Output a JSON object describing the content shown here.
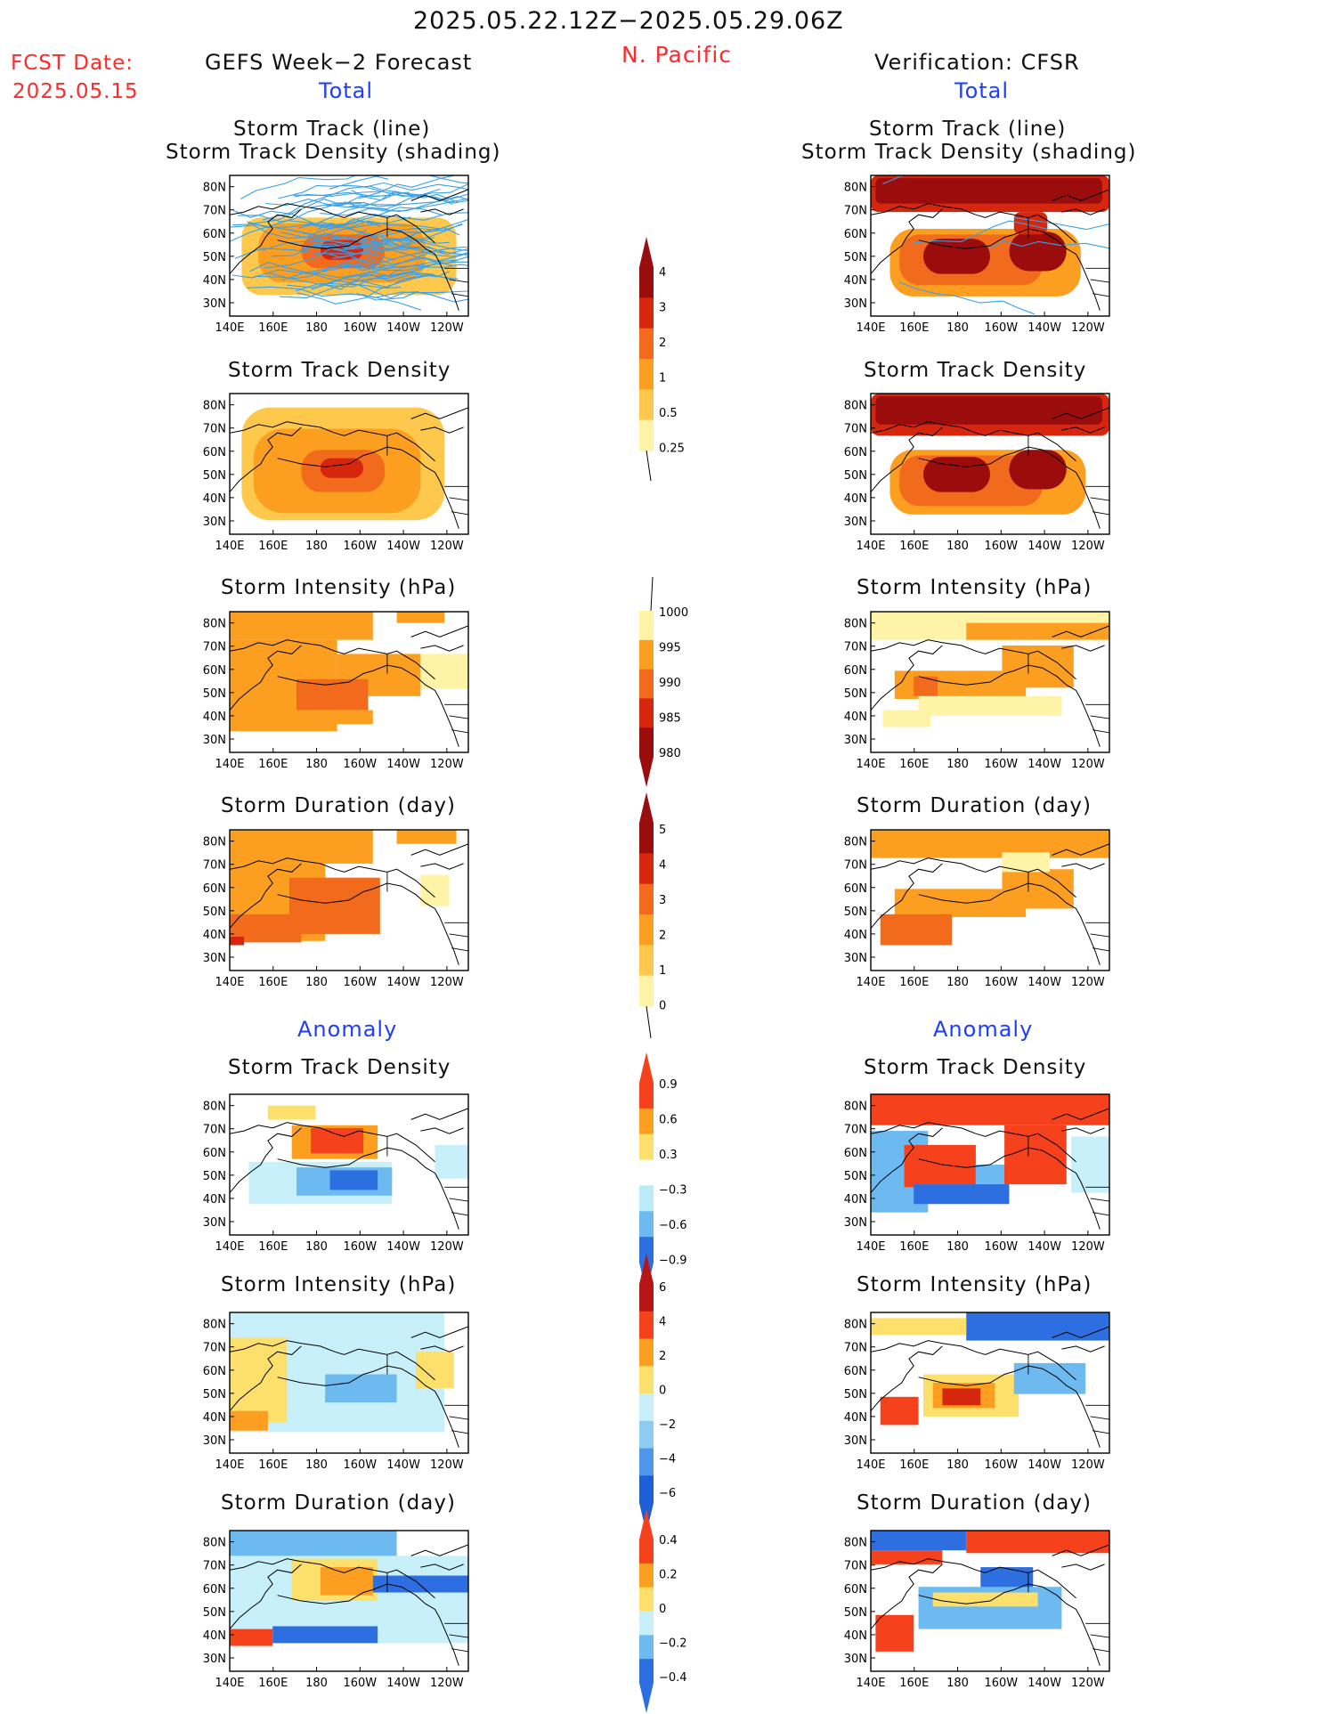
{
  "header": {
    "date_range": "2025.05.22.12Z−2025.05.29.06Z",
    "region": "N. Pacific",
    "fcst_label": "FCST Date:",
    "fcst_date": "2025.05.15",
    "left_title": "GEFS Week−2 Forecast",
    "right_title": "Verification: CFSR"
  },
  "sections": {
    "total": "Total",
    "anomaly": "Anomaly"
  },
  "panel_titles": {
    "track_line": "Storm Track (line)",
    "track_shading": "Storm Track Density (shading)",
    "density": "Storm Track Density",
    "intensity": "Storm Intensity (hPa)",
    "duration": "Storm Duration (day)"
  },
  "axes": {
    "lon_labels": [
      "140E",
      "160E",
      "180",
      "160W",
      "140W",
      "120W"
    ],
    "lat_labels": [
      "80N",
      "70N",
      "60N",
      "50N",
      "40N",
      "30N"
    ]
  },
  "colorbars": {
    "density_total": {
      "labels": [
        "4",
        "3",
        "2",
        "1",
        "0.5",
        "0.25"
      ],
      "colors": [
        "#9b0d0d",
        "#d6260e",
        "#f26a1c",
        "#fc9f20",
        "#fdc84b",
        "#fff3a8"
      ]
    },
    "intensity_total": {
      "labels": [
        "1000",
        "995",
        "990",
        "985",
        "980"
      ],
      "colors": [
        "#fff3a8",
        "#fc9f20",
        "#f26a1c",
        "#d6260e",
        "#9b0d0d"
      ]
    },
    "duration_total": {
      "labels": [
        "5",
        "4",
        "3",
        "2",
        "1",
        "0"
      ],
      "colors": [
        "#9b0d0d",
        "#d6260e",
        "#f26a1c",
        "#fc9f20",
        "#fdc84b",
        "#fff3a8"
      ]
    },
    "density_anom": {
      "labels": [
        "0.9",
        "0.6",
        "0.3",
        "−0.3",
        "−0.6",
        "−0.9"
      ],
      "colors": [
        "#f5421c",
        "#fc9f20",
        "#fde06b",
        "#ffffff",
        "#b9ecf7",
        "#6cbaf0",
        "#2d6fe0"
      ]
    },
    "intensity_anom": {
      "labels": [
        "6",
        "4",
        "2",
        "0",
        "−2",
        "−4",
        "−6"
      ],
      "colors": [
        "#b51515",
        "#f5421c",
        "#fc9f20",
        "#fde06b",
        "#c7f0fa",
        "#8fcaf3",
        "#4f97ea",
        "#1f5fd6"
      ]
    },
    "duration_anom": {
      "labels": [
        "0.4",
        "0.2",
        "0",
        "−0.2",
        "−0.4"
      ],
      "colors": [
        "#f5421c",
        "#fc9f20",
        "#fde06b",
        "#c7f0fa",
        "#6cbaf0",
        "#2d6fe0"
      ]
    }
  },
  "fill_colors": {
    "pale": "#fff3a8",
    "light": "#fdc84b",
    "orange": "#fc9f20",
    "dark_orange": "#f26a1c",
    "red": "#d6260e",
    "dark_red": "#9b0d0d",
    "track_line": "#3aa0e8",
    "anom_pos_strong": "#f5421c",
    "anom_pos": "#fc9f20",
    "anom_pos_weak": "#fde06b",
    "anom_neg_weak": "#c7f0fa",
    "anom_neg": "#6cbaf0",
    "anom_neg_strong": "#2d6fe0"
  }
}
